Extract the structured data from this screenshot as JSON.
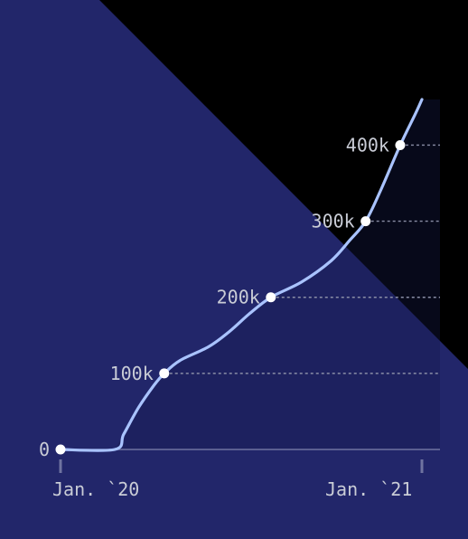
{
  "colors": {
    "background_dark": "#000000",
    "background_panel": "#22266a",
    "line": "#a9c3ff",
    "axis": "#6f73a0",
    "label": "#c9ccd6",
    "marker_fill": "#ffffff",
    "gridline": "#8a8ea6"
  },
  "chart_data": {
    "type": "line",
    "x_axis": {
      "type": "date",
      "range": [
        "2020-01-01",
        "2021-01-01"
      ],
      "ticks": [
        {
          "value": "2020-01-01",
          "label": "Jan. `20"
        },
        {
          "value": "2021-01-01",
          "label": "Jan. `21"
        }
      ]
    },
    "y_axis": {
      "range": [
        0,
        460000
      ],
      "grid": "dashed guides from each milestone point to the right edge"
    },
    "milestones": [
      {
        "x": "2020-01-01",
        "y": 0,
        "label": "0"
      },
      {
        "x": "2020-04-15",
        "y": 100000,
        "label": "100k"
      },
      {
        "x": "2020-08-01",
        "y": 200000,
        "label": "200k"
      },
      {
        "x": "2020-11-05",
        "y": 300000,
        "label": "300k"
      },
      {
        "x": "2020-12-10",
        "y": 400000,
        "label": "400k"
      }
    ],
    "series": [
      {
        "points": [
          [
            "2020-01-01",
            0
          ],
          [
            "2020-02-25",
            0
          ],
          [
            "2020-03-05",
            20000
          ],
          [
            "2020-03-20",
            55000
          ],
          [
            "2020-04-05",
            85000
          ],
          [
            "2020-04-15",
            100000
          ],
          [
            "2020-05-01",
            117000
          ],
          [
            "2020-05-30",
            135000
          ],
          [
            "2020-06-20",
            155000
          ],
          [
            "2020-07-10",
            178000
          ],
          [
            "2020-08-01",
            200000
          ],
          [
            "2020-09-01",
            220000
          ],
          [
            "2020-10-01",
            248000
          ],
          [
            "2020-10-20",
            275000
          ],
          [
            "2020-11-05",
            300000
          ],
          [
            "2020-11-20",
            340000
          ],
          [
            "2020-12-10",
            400000
          ],
          [
            "2020-12-25",
            440000
          ],
          [
            "2021-01-01",
            460000
          ]
        ]
      }
    ]
  }
}
